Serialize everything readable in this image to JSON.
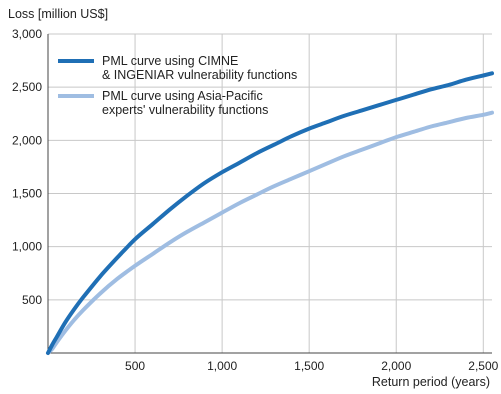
{
  "chart_data": {
    "type": "line",
    "ylabel": "Loss [million US$]",
    "xlabel": "Return period (years)",
    "xlim": [
      0,
      2550
    ],
    "ylim": [
      0,
      3000
    ],
    "x_ticks": [
      500,
      1000,
      1500,
      2000,
      2500
    ],
    "x_tick_labels": [
      "500",
      "1,000",
      "1,500",
      "2,000",
      "2,500"
    ],
    "y_ticks": [
      500,
      1000,
      1500,
      2000,
      2500,
      3000
    ],
    "y_tick_labels": [
      "500",
      "1,000",
      "1,500",
      "2,000",
      "2,500",
      "3,000"
    ],
    "grid": true,
    "legend_position": "top-left",
    "series": [
      {
        "name_lines": [
          "PML curve using CIMNE",
          "& INGENIAR vulnerability functions"
        ],
        "color": "#1f6fb5",
        "x": [
          0,
          25,
          50,
          100,
          150,
          200,
          300,
          400,
          500,
          600,
          700,
          800,
          900,
          1000,
          1100,
          1200,
          1300,
          1400,
          1500,
          1600,
          1700,
          1800,
          1900,
          2000,
          2100,
          2200,
          2300,
          2400,
          2500,
          2550
        ],
        "y": [
          0,
          80,
          150,
          290,
          410,
          520,
          720,
          900,
          1070,
          1210,
          1350,
          1480,
          1600,
          1700,
          1790,
          1880,
          1960,
          2040,
          2110,
          2170,
          2230,
          2280,
          2330,
          2380,
          2430,
          2480,
          2520,
          2570,
          2610,
          2630
        ]
      },
      {
        "name_lines": [
          "PML curve using Asia-Pacific",
          "experts' vulnerability functions"
        ],
        "color": "#9fbde2",
        "x": [
          0,
          25,
          50,
          100,
          150,
          200,
          300,
          400,
          500,
          600,
          700,
          800,
          900,
          1000,
          1100,
          1200,
          1300,
          1400,
          1500,
          1600,
          1700,
          1800,
          1900,
          2000,
          2100,
          2200,
          2300,
          2400,
          2500,
          2550
        ],
        "y": [
          0,
          40,
          100,
          210,
          310,
          400,
          560,
          700,
          820,
          930,
          1040,
          1140,
          1230,
          1320,
          1410,
          1490,
          1570,
          1640,
          1710,
          1780,
          1850,
          1910,
          1970,
          2030,
          2080,
          2130,
          2170,
          2210,
          2240,
          2260
        ]
      }
    ]
  }
}
